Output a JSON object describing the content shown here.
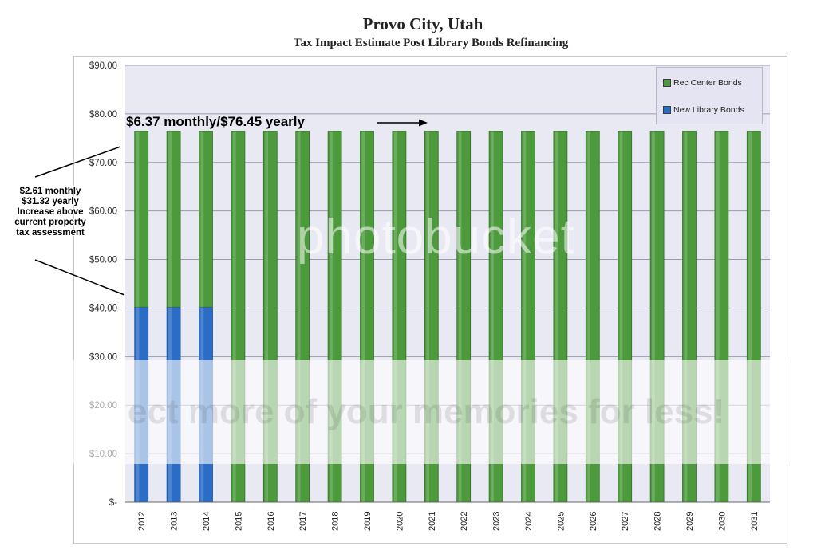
{
  "title": "Provo City, Utah",
  "subtitle": "Tax Impact Estimate Post Library Bonds Refinancing",
  "annotations": {
    "main": "$6.37 monthly/$76.45 yearly",
    "side_lines": [
      "$2.61 monthly",
      "$31.32 yearly",
      "Increase above",
      "current property",
      "tax assessment"
    ]
  },
  "watermark": {
    "logo_text": "photobucket",
    "tagline": "ect more of your memories for less!"
  },
  "colors": {
    "rec_center": "#4c9a3c",
    "new_library": "#2b6cc4",
    "plot_bg": "#e9e9f4",
    "grid": "#9a9ab0"
  },
  "chart_data": {
    "type": "bar",
    "stacked": true,
    "title": "Provo City, Utah",
    "subtitle": "Tax Impact Estimate Post Library Bonds Refinancing",
    "categories": [
      "2012",
      "2013",
      "2014",
      "2015",
      "2016",
      "2017",
      "2018",
      "2019",
      "2020",
      "2021",
      "2022",
      "2023",
      "2024",
      "2025",
      "2026",
      "2027",
      "2028",
      "2029",
      "2030",
      "2031"
    ],
    "series": [
      {
        "name": "New Library Bonds",
        "values": [
          40.2,
          40.2,
          40.2,
          0,
          0,
          0,
          0,
          0,
          0,
          0,
          0,
          0,
          0,
          0,
          0,
          0,
          0,
          0,
          0,
          0
        ]
      },
      {
        "name": "Rec Center Bonds",
        "values": [
          36.25,
          36.25,
          36.25,
          76.45,
          76.45,
          76.45,
          76.45,
          76.45,
          76.45,
          76.45,
          76.45,
          76.45,
          76.45,
          76.45,
          76.45,
          76.45,
          76.45,
          76.45,
          76.45,
          76.45
        ]
      }
    ],
    "y_ticks": [
      0,
      10,
      20,
      30,
      40,
      50,
      60,
      70,
      80,
      90
    ],
    "y_tick_labels": [
      "$-",
      "$10.00",
      "$20.00",
      "$30.00",
      "$40.00",
      "$50.00",
      "$60.00",
      "$70.00",
      "$80.00",
      "$90.00"
    ],
    "ylim": [
      0,
      90
    ],
    "xlabel": "",
    "ylabel": "",
    "grid": true,
    "legend": {
      "position": "top-right",
      "entries": [
        "Rec Center Bonds",
        "New Library Bonds"
      ]
    }
  }
}
